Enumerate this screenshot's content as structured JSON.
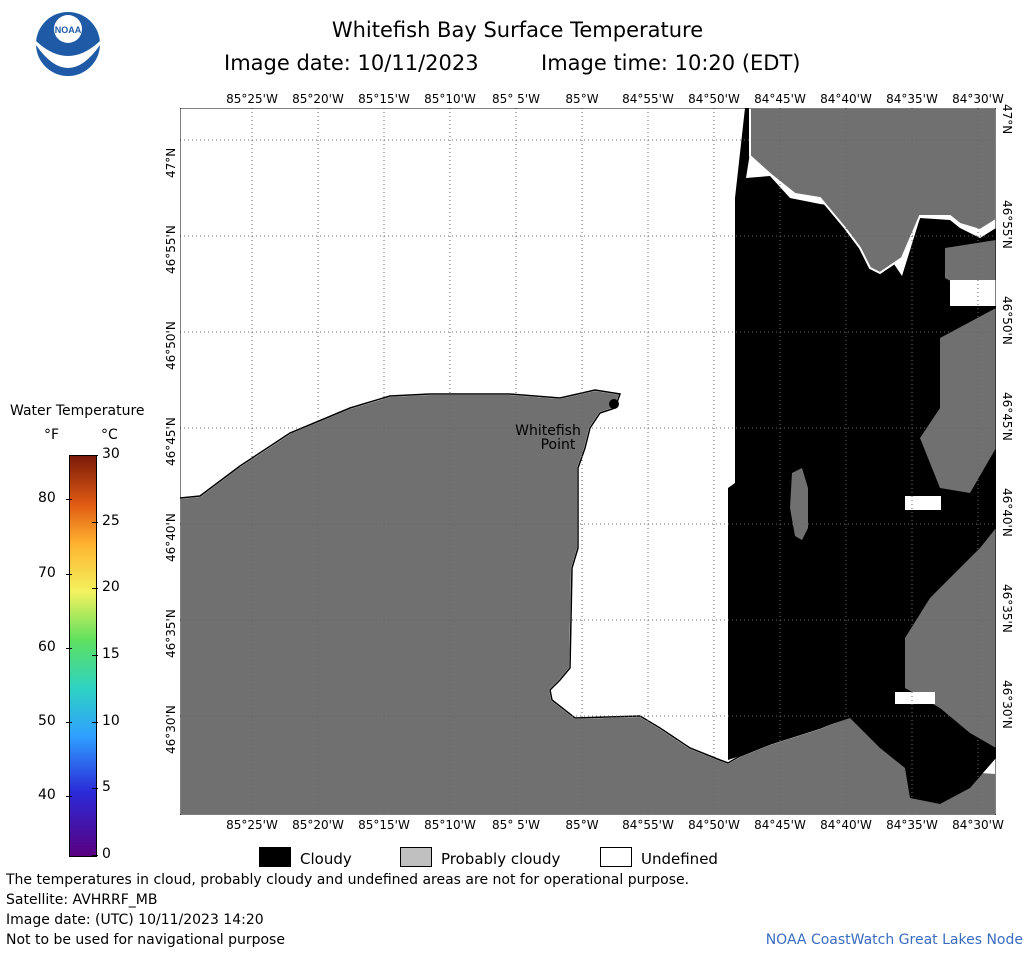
{
  "header": {
    "title": "Whitefish Bay Surface Temperature",
    "subtitle_date": "Image date: 10/11/2023",
    "subtitle_time": "Image time: 10:20 (EDT)"
  },
  "logo": {
    "text": "NOAA",
    "icon": "noaa-logo"
  },
  "map": {
    "lon_ticks": [
      "85°25'W",
      "85°20'W",
      "85°15'W",
      "85°10'W",
      "85° 5'W",
      "85°W",
      "84°55'W",
      "84°50'W",
      "84°45'W",
      "84°40'W",
      "84°35'W",
      "84°30'W"
    ],
    "lat_ticks": [
      "47°N",
      "46°55'N",
      "46°50'N",
      "46°45'N",
      "46°40'N",
      "46°35'N",
      "46°30'N"
    ],
    "place_label_line1": "Whitefish",
    "place_label_line2": "Point",
    "colors": {
      "land": "#707070",
      "cloud": "#000000",
      "undefined": "#ffffff",
      "probably_cloudy": "#c0c0c0",
      "grid": "#888888"
    }
  },
  "colorbar": {
    "title": "Water Temperature",
    "unit_f": "°F",
    "unit_c": "°C",
    "fahrenheit": [
      "80",
      "70",
      "60",
      "50",
      "40"
    ],
    "celsius": [
      "30",
      "25",
      "20",
      "15",
      "10",
      "5",
      "0"
    ]
  },
  "legend": {
    "cloudy": "Cloudy",
    "probably_cloudy": "Probably cloudy",
    "undefined": "Undefined"
  },
  "footer": {
    "line1": "The temperatures in cloud, probably cloudy and undefined areas are not for operational purpose.",
    "line2": "Satellite: AVHRRF_MB",
    "line3": "Image date: (UTC) 10/11/2023  14:20",
    "line4": "Not to be used for navigational purpose",
    "credit": "NOAA CoastWatch Great Lakes Node"
  }
}
